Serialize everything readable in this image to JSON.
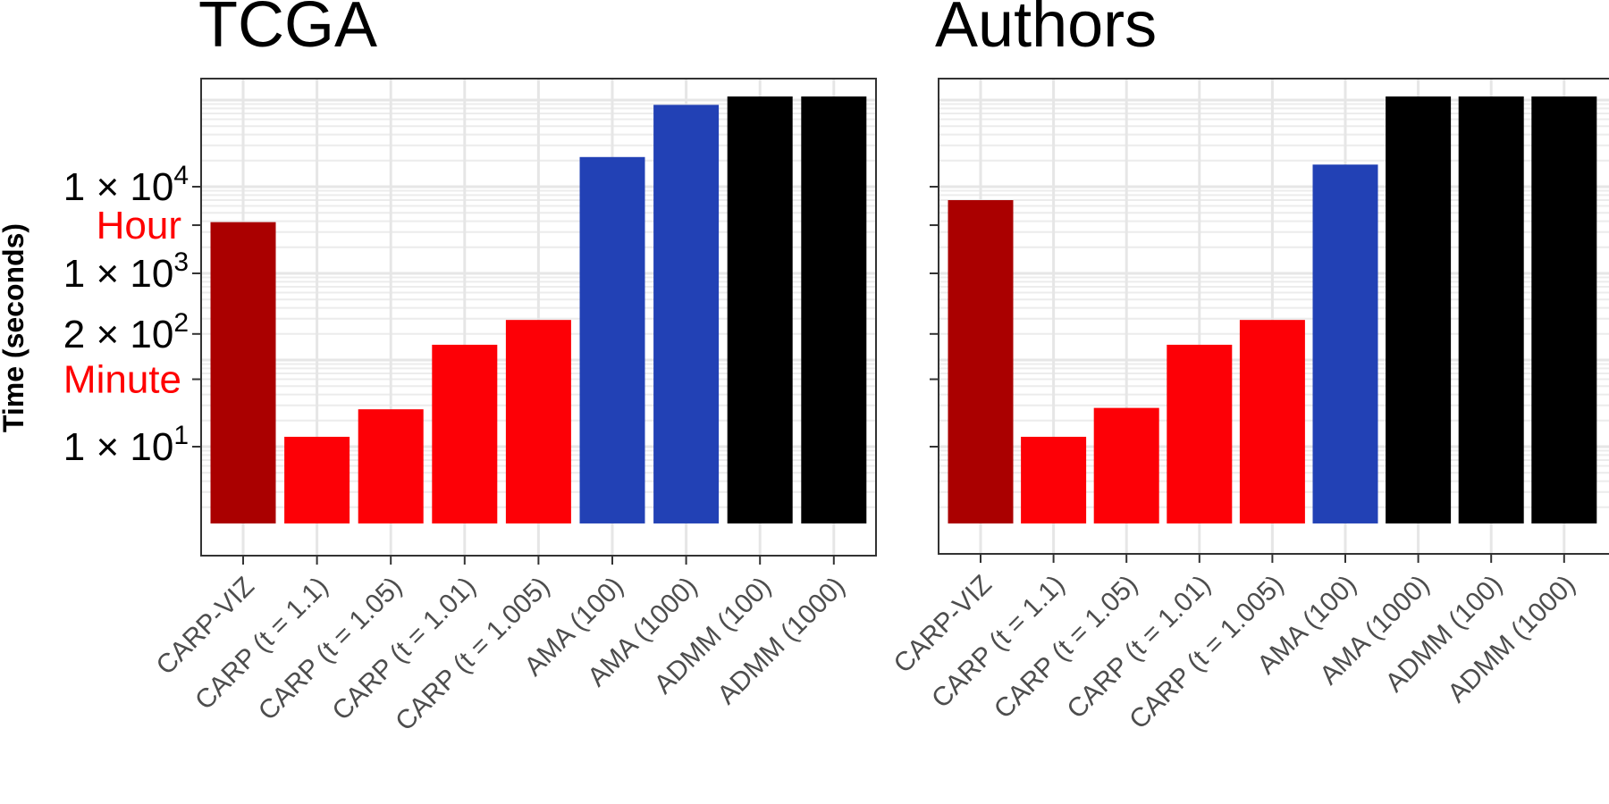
{
  "y_axis_label": "Time (seconds)",
  "colors": {
    "carp_viz": "#aa0000",
    "carp": "#fd0006",
    "ama": "#2241b5",
    "admm": "#000000",
    "reference_label": "#ff0000"
  },
  "chart_data": [
    {
      "type": "bar",
      "title": "TCGA",
      "categories": [
        "CARP-VIZ",
        "CARP (t = 1.1)",
        "CARP (t = 1.05)",
        "CARP (t = 1.01)",
        "CARP (t = 1.005)",
        "AMA (100)",
        "AMA (1000)",
        "ADMM (100)",
        "ADMM (1000)"
      ],
      "values": [
        3900,
        13,
        27,
        150,
        290,
        22000,
        88000,
        110000,
        110000
      ],
      "bar_colors": [
        "#aa0000",
        "#fd0006",
        "#fd0006",
        "#fd0006",
        "#fd0006",
        "#2241b5",
        "#2241b5",
        "#000000",
        "#000000"
      ],
      "xlabel": "",
      "ylabel": "Time (seconds)",
      "yscale": "log",
      "ylim": [
        1.3,
        190000
      ],
      "grid": true,
      "y_ticks": [
        {
          "value": 10,
          "base": "1 × 10",
          "exp": "1"
        },
        {
          "value": 200,
          "base": "2 × 10",
          "exp": "2"
        },
        {
          "value": 1000,
          "base": "1 × 10",
          "exp": "3"
        },
        {
          "value": 10000,
          "base": "1 × 10",
          "exp": "4"
        }
      ],
      "reference_ticks": [
        {
          "value": 60,
          "label": "Minute"
        },
        {
          "value": 3600,
          "label": "Hour"
        }
      ]
    },
    {
      "type": "bar",
      "title": "Authors",
      "categories": [
        "CARP-VIZ",
        "CARP (t = 1.1)",
        "CARP (t = 1.05)",
        "CARP (t = 1.01)",
        "CARP (t = 1.005)",
        "AMA (100)",
        "AMA (1000)",
        "ADMM (100)",
        "ADMM (1000)"
      ],
      "values": [
        7000,
        13,
        28,
        150,
        290,
        18000,
        110000,
        110000,
        110000
      ],
      "bar_colors": [
        "#aa0000",
        "#fd0006",
        "#fd0006",
        "#fd0006",
        "#fd0006",
        "#2241b5",
        "#000000",
        "#000000",
        "#000000"
      ],
      "xlabel": "",
      "yscale": "log",
      "ylim": [
        1.3,
        190000
      ],
      "grid": true
    }
  ]
}
